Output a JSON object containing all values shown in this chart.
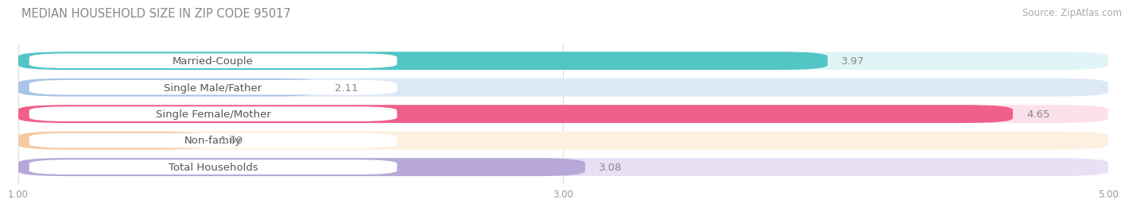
{
  "title": "MEDIAN HOUSEHOLD SIZE IN ZIP CODE 95017",
  "source": "Source: ZipAtlas.com",
  "categories": [
    "Married-Couple",
    "Single Male/Father",
    "Single Female/Mother",
    "Non-family",
    "Total Households"
  ],
  "values": [
    3.97,
    2.11,
    4.65,
    1.69,
    3.08
  ],
  "bar_colors": [
    "#52c5c5",
    "#a8c4e8",
    "#f0608a",
    "#f5c9a0",
    "#b8a8d8"
  ],
  "bar_bg_colors": [
    "#e0f5f5",
    "#dde8f5",
    "#fce0ec",
    "#fdf0e0",
    "#e8e0f5"
  ],
  "xlim_start": 1.0,
  "xlim_end": 5.0,
  "xticks": [
    1.0,
    3.0,
    5.0
  ],
  "label_fontsize": 9.5,
  "value_fontsize": 9.5,
  "title_fontsize": 10.5,
  "source_fontsize": 8.5,
  "bg_color": "#ffffff",
  "title_color": "#888888",
  "label_color": "#555555",
  "value_color": "#888888",
  "tick_color": "#999999"
}
